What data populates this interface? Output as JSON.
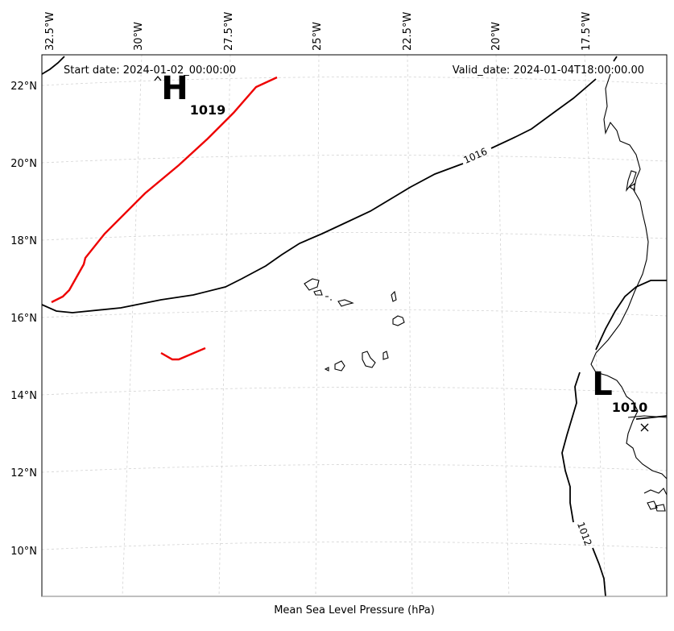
{
  "figure": {
    "start_date_label": "Start date: 2024-01-02_00:00:00",
    "valid_date_label": "Valid_date: 2024-01-04T18:00:00.00",
    "xlabel": "Mean Sea Level Pressure (hPa)"
  },
  "axes": {
    "lon_ticks": [
      "32.5°W",
      "30°W",
      "27.5°W",
      "25°W",
      "22.5°W",
      "20°W",
      "17.5°W"
    ],
    "lat_ticks": [
      "22°N",
      "20°N",
      "18°N",
      "16°N",
      "14°N",
      "12°N",
      "10°N"
    ]
  },
  "pressure_centers": [
    {
      "type": "H",
      "value": "1019"
    },
    {
      "type": "L",
      "value": "1010"
    }
  ],
  "contour_labels": [
    "1016",
    "1012"
  ],
  "colors": {
    "isobar": "#000000",
    "highlight_isobar": "#ee0000",
    "gridline": "#d3d3d3"
  }
}
